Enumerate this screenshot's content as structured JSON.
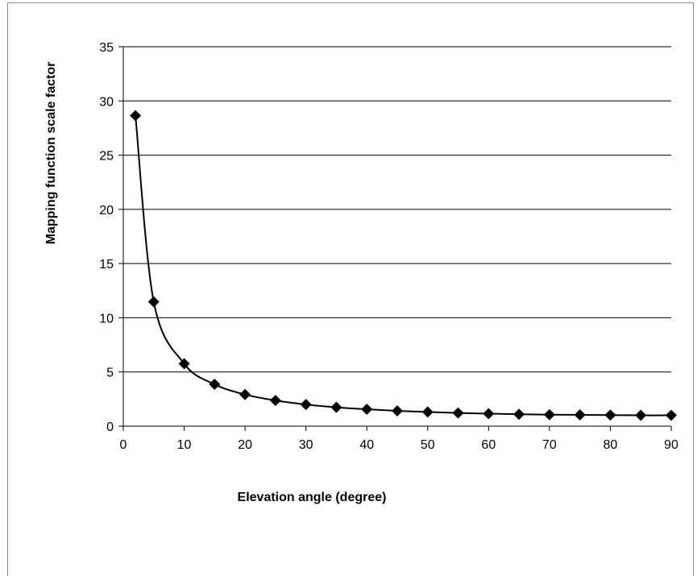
{
  "chart_data": {
    "type": "line",
    "title": "",
    "xlabel": "Elevation angle (degree)",
    "ylabel": "Mapping function scale factor",
    "xlim": [
      0,
      90
    ],
    "ylim": [
      0,
      35
    ],
    "x_ticks": [
      "0",
      "10",
      "20",
      "30",
      "40",
      "50",
      "60",
      "70",
      "80",
      "90"
    ],
    "y_ticks": [
      "0",
      "5",
      "10",
      "15",
      "20",
      "25",
      "30",
      "35"
    ],
    "grid": "horizontal",
    "legend": "none",
    "marker": "diamond",
    "line_color": "#000000",
    "series": [
      {
        "x": [
          2,
          5,
          10,
          15,
          20,
          25,
          30,
          35,
          40,
          45,
          50,
          55,
          60,
          65,
          70,
          75,
          80,
          85,
          90
        ],
        "values": [
          28.65,
          11.47,
          5.76,
          3.86,
          2.92,
          2.37,
          2.0,
          1.74,
          1.56,
          1.41,
          1.31,
          1.22,
          1.15,
          1.1,
          1.06,
          1.04,
          1.02,
          1.0,
          1.0
        ]
      }
    ]
  }
}
